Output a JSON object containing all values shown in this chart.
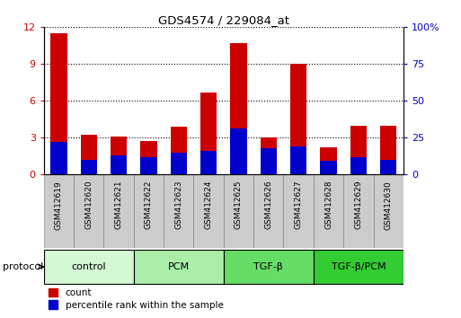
{
  "title": "GDS4574 / 229084_at",
  "samples": [
    "GSM412619",
    "GSM412620",
    "GSM412621",
    "GSM412622",
    "GSM412623",
    "GSM412624",
    "GSM412625",
    "GSM412626",
    "GSM412627",
    "GSM412628",
    "GSM412629",
    "GSM412630"
  ],
  "count_values": [
    11.5,
    3.2,
    3.1,
    2.7,
    3.9,
    6.7,
    10.7,
    3.0,
    9.0,
    2.2,
    4.0,
    4.0
  ],
  "percentile_values": [
    22,
    10,
    13,
    12,
    15,
    16,
    31,
    18,
    19,
    9,
    12,
    10
  ],
  "bar_color": "#cc0000",
  "percentile_color": "#0000cc",
  "ylim_left": [
    0,
    12
  ],
  "ylim_right": [
    0,
    100
  ],
  "yticks_left": [
    0,
    3,
    6,
    9,
    12
  ],
  "yticks_right": [
    0,
    25,
    50,
    75,
    100
  ],
  "groups": [
    {
      "label": "control",
      "start": 0,
      "end": 3,
      "color": "#d4f7d4"
    },
    {
      "label": "PCM",
      "start": 3,
      "end": 6,
      "color": "#aaeeaa"
    },
    {
      "label": "TGF-β",
      "start": 6,
      "end": 9,
      "color": "#66dd66"
    },
    {
      "label": "TGF-β/PCM",
      "start": 9,
      "end": 12,
      "color": "#33cc33"
    }
  ],
  "legend_count_label": "count",
  "legend_pct_label": "percentile rank within the sample",
  "protocol_label": "protocol",
  "background_color": "#ffffff",
  "tick_color_left": "#cc0000",
  "tick_color_right": "#0000cc",
  "label_box_color": "#cccccc",
  "label_box_edge": "#888888"
}
